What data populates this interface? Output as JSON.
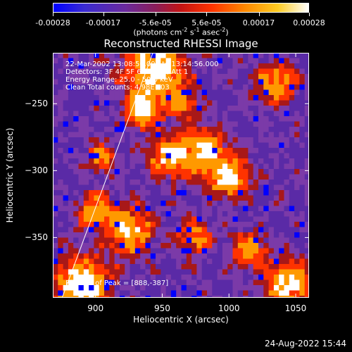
{
  "colorbar": {
    "tick_labels": [
      "-0.00028",
      "-0.00017",
      "-5.6e-05",
      "5.6e-05",
      "0.00017",
      "0.00028"
    ],
    "tick_values": [
      -0.00028,
      -0.00017,
      -5.6e-05,
      5.6e-05,
      0.00017,
      0.00028
    ],
    "range": [
      -0.00028,
      0.00028
    ],
    "unit": {
      "prefix": "(photons cm",
      "exp1": "-2",
      "mid1": " s",
      "exp2": "-1",
      "mid2": " asec",
      "exp3": "-2",
      "suffix": ")"
    }
  },
  "chart_data": {
    "type": "heatmap",
    "title": "Reconstructed RHESSI Image",
    "xlabel": "Heliocentric X (arcsec)",
    "ylabel": "Heliocentric Y (arcsec)",
    "xlim": [
      868,
      1060
    ],
    "ylim": [
      -395,
      -212
    ],
    "x_ticks": [
      900,
      950,
      1000,
      1050
    ],
    "y_ticks": [
      -250,
      -300,
      -350
    ],
    "colormap": [
      "#0000ff",
      "#5a2aa6",
      "#7b3aa8",
      "#a81818",
      "#ff3300",
      "#ff9900",
      "#ffffff"
    ],
    "limb_line": [
      [
        875,
        -395
      ],
      [
        943,
        -212
      ]
    ],
    "hot_regions": [
      {
        "x": 945,
        "y": -225,
        "r": 20,
        "v": 0.9
      },
      {
        "x": 935,
        "y": -255,
        "r": 12,
        "v": 0.8
      },
      {
        "x": 955,
        "y": -290,
        "r": 14,
        "v": 0.7
      },
      {
        "x": 980,
        "y": -285,
        "r": 16,
        "v": 0.75
      },
      {
        "x": 1000,
        "y": -305,
        "r": 14,
        "v": 0.8
      },
      {
        "x": 1035,
        "y": -235,
        "r": 14,
        "v": 0.6
      },
      {
        "x": 925,
        "y": -345,
        "r": 16,
        "v": 0.7
      },
      {
        "x": 900,
        "y": -330,
        "r": 12,
        "v": 0.6
      },
      {
        "x": 890,
        "y": -385,
        "r": 18,
        "v": 1.0
      },
      {
        "x": 1045,
        "y": -385,
        "r": 16,
        "v": 0.8
      },
      {
        "x": 975,
        "y": -350,
        "r": 12,
        "v": 0.5
      },
      {
        "x": 1015,
        "y": -360,
        "r": 12,
        "v": 0.55
      },
      {
        "x": 905,
        "y": -290,
        "r": 10,
        "v": 0.5
      },
      {
        "x": 965,
        "y": -250,
        "r": 10,
        "v": 0.5
      }
    ],
    "annotations": [
      "22-Mar-2002 13:08:56.000 to 13:14:56.000",
      "Detectors: 3F 4F 5F 6F 7F 8F, Att 1",
      "Energy Range: 25.0 - 50.0 keV",
      "Clean    Total counts: 4.98E+03"
    ],
    "peak_label": "Position of Peak = [888,-387]"
  },
  "footer": {
    "date_stamp": "24-Aug-2022 15:44"
  }
}
